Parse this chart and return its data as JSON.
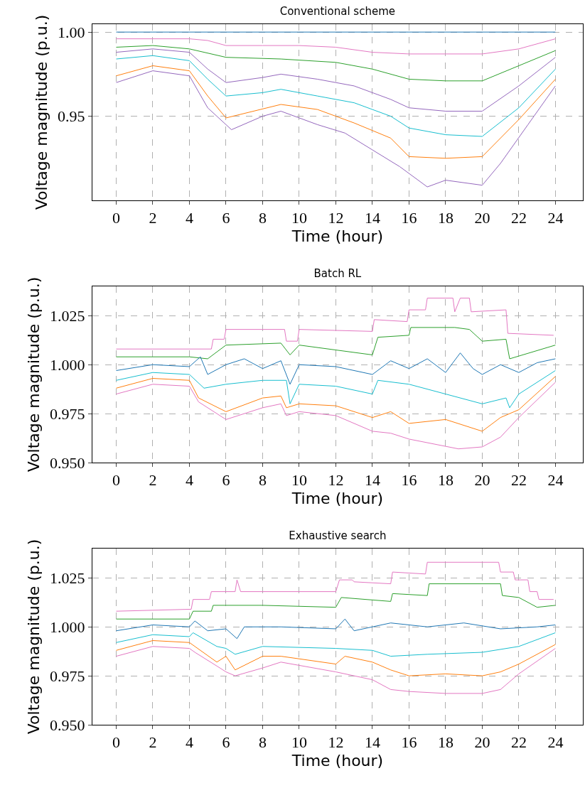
{
  "chart_data": [
    {
      "type": "line",
      "title": "Conventional scheme",
      "xlabel": "Time (hour)",
      "ylabel": "Voltage magnitude (p.u.)",
      "xlim": [
        -1.3,
        25.5
      ],
      "ylim": [
        0.9,
        1.0047
      ],
      "xticks": [
        0,
        2,
        4,
        6,
        8,
        10,
        12,
        14,
        16,
        18,
        20,
        22,
        24
      ],
      "yticks": [
        {
          "value": 0.95,
          "label": "0.95"
        },
        {
          "value": 1.0,
          "label": "1.00"
        }
      ],
      "grid": true,
      "series": [
        {
          "color": "#1f77b4",
          "x": [
            0,
            24
          ],
          "values": [
            1.0,
            1.0
          ]
        },
        {
          "color": "#e377c2",
          "x": [
            0,
            2,
            4,
            5,
            6,
            8,
            10,
            12,
            14,
            16,
            18,
            20,
            22,
            24
          ],
          "values": [
            0.996,
            0.996,
            0.996,
            0.995,
            0.992,
            0.992,
            0.992,
            0.991,
            0.988,
            0.987,
            0.987,
            0.987,
            0.99,
            0.996
          ]
        },
        {
          "color": "#2ca02c",
          "x": [
            0,
            2,
            4,
            6,
            9,
            12,
            14,
            16,
            18,
            20,
            22,
            24
          ],
          "values": [
            0.991,
            0.992,
            0.99,
            0.985,
            0.984,
            0.982,
            0.978,
            0.972,
            0.971,
            0.971,
            0.98,
            0.989
          ]
        },
        {
          "color": "#9467bd",
          "x": [
            0,
            2,
            4,
            5,
            6,
            8,
            9,
            11,
            13,
            15,
            16,
            18,
            20,
            22,
            24
          ],
          "values": [
            0.988,
            0.99,
            0.988,
            0.978,
            0.97,
            0.973,
            0.975,
            0.972,
            0.968,
            0.96,
            0.955,
            0.953,
            0.953,
            0.968,
            0.985
          ]
        },
        {
          "color": "#17becf",
          "x": [
            0,
            2,
            4,
            5,
            6,
            8,
            9,
            11,
            13,
            15,
            16,
            18,
            20,
            22,
            24
          ],
          "values": [
            0.984,
            0.986,
            0.983,
            0.972,
            0.962,
            0.964,
            0.966,
            0.962,
            0.958,
            0.95,
            0.943,
            0.939,
            0.938,
            0.955,
            0.978
          ]
        },
        {
          "color": "#ff7f0e",
          "x": [
            0,
            2,
            4,
            5,
            6,
            9,
            11,
            13,
            15,
            16,
            18,
            20,
            22,
            24
          ],
          "values": [
            0.974,
            0.98,
            0.977,
            0.962,
            0.949,
            0.957,
            0.954,
            0.946,
            0.937,
            0.926,
            0.925,
            0.926,
            0.948,
            0.972
          ]
        },
        {
          "color": "#9467bd",
          "x": [
            0,
            2,
            4,
            5,
            6.3,
            8,
            9,
            11,
            12.5,
            14,
            15.5,
            17,
            18,
            20,
            21,
            22.5,
            24
          ],
          "values": [
            0.97,
            0.977,
            0.974,
            0.955,
            0.942,
            0.95,
            0.953,
            0.945,
            0.94,
            0.93,
            0.92,
            0.908,
            0.912,
            0.909,
            0.922,
            0.945,
            0.968
          ]
        }
      ]
    },
    {
      "type": "line",
      "title": "Batch RL",
      "xlabel": "Time (hour)",
      "ylabel": "Voltage magnitude (p.u.)",
      "xlim": [
        -1.3,
        25.5
      ],
      "ylim": [
        0.95,
        1.04
      ],
      "xticks": [
        0,
        2,
        4,
        6,
        8,
        10,
        12,
        14,
        16,
        18,
        20,
        22,
        24
      ],
      "yticks": [
        {
          "value": 0.95,
          "label": "0.950"
        },
        {
          "value": 0.975,
          "label": "0.975"
        },
        {
          "value": 1.0,
          "label": "1.000"
        },
        {
          "value": 1.025,
          "label": "1.025"
        }
      ],
      "grid": true,
      "series": [
        {
          "color": "#e377c2",
          "x": [
            0,
            5.2,
            5.3,
            5.9,
            6,
            9.2,
            9.3,
            9.9,
            10,
            14,
            14.1,
            15.9,
            16,
            16.9,
            17,
            18.4,
            18.5,
            18.8,
            19.3,
            19.4,
            21.3,
            21.4,
            23.9
          ],
          "values": [
            1.008,
            1.008,
            1.013,
            1.013,
            1.018,
            1.018,
            1.012,
            1.012,
            1.018,
            1.017,
            1.023,
            1.022,
            1.028,
            1.028,
            1.034,
            1.034,
            1.027,
            1.034,
            1.034,
            1.027,
            1.028,
            1.016,
            1.015
          ]
        },
        {
          "color": "#2ca02c",
          "x": [
            0,
            4,
            5,
            6,
            9,
            9.5,
            10,
            14,
            14.3,
            16,
            16.1,
            18.5,
            19.3,
            20,
            21.3,
            21.5,
            24
          ],
          "values": [
            1.004,
            1.004,
            1.003,
            1.01,
            1.011,
            1.005,
            1.01,
            1.005,
            1.014,
            1.015,
            1.019,
            1.019,
            1.018,
            1.012,
            1.013,
            1.003,
            1.01
          ]
        },
        {
          "color": "#1f77b4",
          "x": [
            0,
            2,
            4,
            4.6,
            5,
            6,
            7,
            8,
            9,
            9.5,
            10,
            12,
            14,
            15,
            16,
            17,
            18,
            18.8,
            19.5,
            20,
            21,
            22,
            23,
            24
          ],
          "values": [
            0.997,
            1.0,
            0.999,
            1.004,
            0.995,
            1.0,
            1.003,
            0.998,
            1.002,
            0.99,
            1.0,
            0.999,
            0.995,
            1.002,
            0.998,
            1.003,
            0.996,
            1.006,
            0.998,
            0.995,
            1.0,
            0.996,
            1.001,
            1.003
          ]
        },
        {
          "color": "#17becf",
          "x": [
            0,
            2,
            4,
            4.8,
            6,
            8,
            9.3,
            9.5,
            10,
            12,
            14,
            14.3,
            16,
            18,
            20,
            21.3,
            21.5,
            22,
            24
          ],
          "values": [
            0.992,
            0.996,
            0.995,
            0.988,
            0.99,
            0.992,
            0.992,
            0.98,
            0.99,
            0.989,
            0.985,
            0.992,
            0.99,
            0.985,
            0.98,
            0.983,
            0.978,
            0.985,
            0.997
          ]
        },
        {
          "color": "#ff7f0e",
          "x": [
            0,
            2,
            4,
            4.5,
            6,
            8,
            9,
            9.3,
            10,
            12,
            14,
            15,
            16,
            18,
            20,
            21,
            22,
            24
          ],
          "values": [
            0.988,
            0.993,
            0.992,
            0.983,
            0.976,
            0.983,
            0.984,
            0.978,
            0.98,
            0.979,
            0.973,
            0.976,
            0.97,
            0.972,
            0.966,
            0.973,
            0.977,
            0.994
          ]
        },
        {
          "color": "#e377c2",
          "x": [
            0,
            2,
            4,
            4.5,
            6,
            8,
            9,
            9.3,
            10,
            12,
            14,
            15,
            16,
            18.7,
            20,
            21,
            22,
            24
          ],
          "values": [
            0.985,
            0.99,
            0.989,
            0.981,
            0.972,
            0.978,
            0.98,
            0.974,
            0.976,
            0.974,
            0.966,
            0.965,
            0.962,
            0.957,
            0.958,
            0.963,
            0.973,
            0.991
          ]
        }
      ]
    },
    {
      "type": "line",
      "title": "Exhaustive search",
      "xlabel": "Time (hour)",
      "ylabel": "Voltage magnitude (p.u.)",
      "xlim": [
        -1.3,
        25.5
      ],
      "ylim": [
        0.95,
        1.04
      ],
      "xticks": [
        0,
        2,
        4,
        6,
        8,
        10,
        12,
        14,
        16,
        18,
        20,
        22,
        24
      ],
      "yticks": [
        {
          "value": 0.95,
          "label": "0.950"
        },
        {
          "value": 0.975,
          "label": "0.975"
        },
        {
          "value": 1.0,
          "label": "1.000"
        },
        {
          "value": 1.025,
          "label": "1.025"
        }
      ],
      "grid": true,
      "series": [
        {
          "color": "#e377c2",
          "x": [
            0,
            4.1,
            4.2,
            5.1,
            5.2,
            6.5,
            6.6,
            6.8,
            12,
            12.2,
            12.9,
            13,
            15,
            15.1,
            16.9,
            17,
            20.9,
            21,
            21.7,
            21.8,
            22.5,
            22.6,
            23,
            23.1,
            23.9
          ],
          "values": [
            1.008,
            1.009,
            1.014,
            1.014,
            1.018,
            1.018,
            1.024,
            1.018,
            1.018,
            1.024,
            1.024,
            1.023,
            1.022,
            1.028,
            1.027,
            1.033,
            1.033,
            1.028,
            1.028,
            1.024,
            1.024,
            1.018,
            1.018,
            1.014,
            1.014
          ]
        },
        {
          "color": "#2ca02c",
          "x": [
            0,
            4,
            4.2,
            5.2,
            5.3,
            8,
            12,
            12.3,
            15,
            15.1,
            17,
            17.1,
            21,
            21.1,
            22,
            23,
            24
          ],
          "values": [
            1.004,
            1.004,
            1.008,
            1.008,
            1.011,
            1.011,
            1.01,
            1.015,
            1.013,
            1.017,
            1.016,
            1.022,
            1.022,
            1.016,
            1.015,
            1.01,
            1.011
          ]
        },
        {
          "color": "#1f77b4",
          "x": [
            0,
            2,
            4,
            4.3,
            5,
            6,
            6.6,
            7,
            9,
            12,
            12.5,
            13,
            15,
            17,
            19,
            21,
            23,
            24
          ],
          "values": [
            0.998,
            1.001,
            1.0,
            1.003,
            0.998,
            0.999,
            0.994,
            1.0,
            1.0,
            0.999,
            1.004,
            0.998,
            1.002,
            1.0,
            1.002,
            0.999,
            1.0,
            1.001
          ]
        },
        {
          "color": "#17becf",
          "x": [
            0,
            2,
            4,
            4.2,
            5.5,
            6,
            6.5,
            8,
            12,
            14,
            15,
            17,
            20,
            22,
            24
          ],
          "values": [
            0.992,
            0.996,
            0.995,
            0.997,
            0.99,
            0.989,
            0.986,
            0.99,
            0.989,
            0.988,
            0.985,
            0.986,
            0.987,
            0.99,
            0.997
          ]
        },
        {
          "color": "#ff7f0e",
          "x": [
            0,
            2,
            4,
            4.3,
            5.5,
            6,
            6.5,
            8,
            9,
            12,
            12.5,
            14,
            15,
            16,
            18,
            20,
            21,
            22,
            24
          ],
          "values": [
            0.988,
            0.993,
            0.992,
            0.99,
            0.982,
            0.985,
            0.978,
            0.985,
            0.985,
            0.981,
            0.985,
            0.982,
            0.978,
            0.975,
            0.976,
            0.975,
            0.977,
            0.981,
            0.991
          ]
        },
        {
          "color": "#e377c2",
          "x": [
            0,
            2,
            4,
            4.3,
            5.5,
            6,
            6.5,
            8,
            9,
            12,
            13,
            14,
            15,
            16,
            18,
            20,
            21,
            22,
            24
          ],
          "values": [
            0.985,
            0.99,
            0.989,
            0.987,
            0.98,
            0.977,
            0.975,
            0.979,
            0.982,
            0.977,
            0.975,
            0.973,
            0.968,
            0.967,
            0.966,
            0.966,
            0.968,
            0.976,
            0.989
          ]
        }
      ]
    }
  ]
}
